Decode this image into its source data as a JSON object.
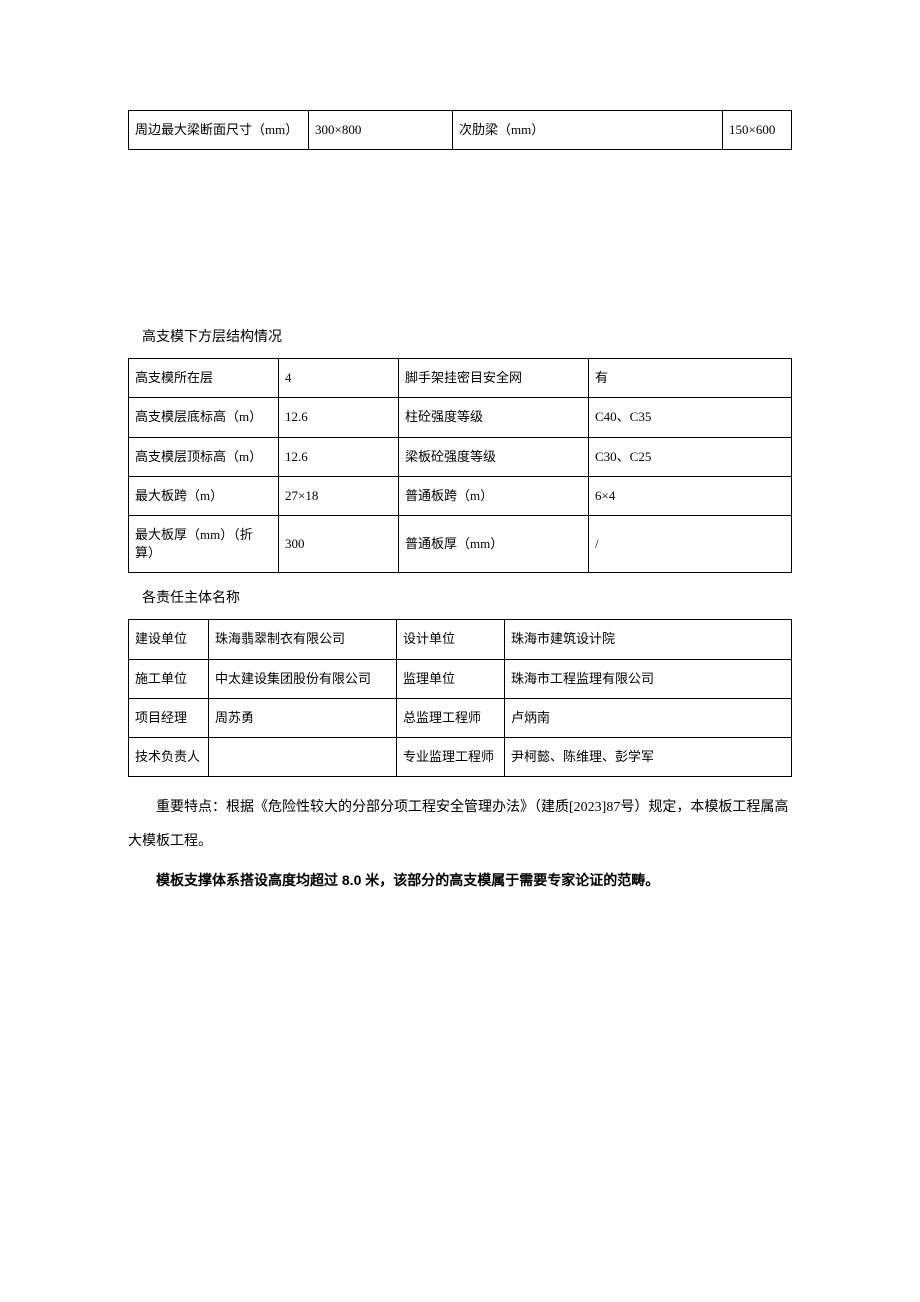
{
  "table1": {
    "rows": [
      {
        "l1": "周边最大梁断面尺寸（mm）",
        "v1": "300×800",
        "l2": "次肋梁（mm）",
        "v2": "150×600"
      }
    ]
  },
  "heading2": "高支模下方层结构情况",
  "table2": {
    "rows": [
      {
        "l1": "高支模所在层",
        "v1": "4",
        "l2": "脚手架挂密目安全网",
        "v2": "有"
      },
      {
        "l1": "高支模层底标高（m）",
        "v1": "12.6",
        "l2": "柱砼强度等级",
        "v2": "C40、C35"
      },
      {
        "l1": "高支模层顶标高（m）",
        "v1": "12.6",
        "l2": "梁板砼强度等级",
        "v2": "C30、C25"
      },
      {
        "l1": "最大板跨（m）",
        "v1": "27×18",
        "l2": "普通板跨（m）",
        "v2": "6×4"
      },
      {
        "l1": "最大板厚（mm）（折算）",
        "v1": "300",
        "l2": "普通板厚（mm）",
        "v2": "/"
      }
    ]
  },
  "heading3": "各责任主体名称",
  "table3": {
    "rows": [
      {
        "l1": "建设单位",
        "v1": "珠海翡翠制衣有限公司",
        "l2": "设计单位",
        "v2": "珠海市建筑设计院"
      },
      {
        "l1": "施工单位",
        "v1": "中太建设集团股份有限公司",
        "l2": "监理单位",
        "v2": "珠海市工程监理有限公司"
      },
      {
        "l1": "项目经理",
        "v1": "周苏勇",
        "l2": "总监理工程师",
        "v2": "卢炳南"
      },
      {
        "l1": "技术负责人",
        "v1": "",
        "l2": "专业监理工程师",
        "v2": "尹柯懿、陈维理、彭学军"
      }
    ]
  },
  "para1": "重要特点：根据《危险性较大的分部分项工程安全管理办法》（建质[2023]87号）规定，本模板工程属高大模板工程。",
  "para2": "模板支撑体系搭设高度均超过 8.0 米，该部分的高支模属于需要专家论证的范畴。"
}
